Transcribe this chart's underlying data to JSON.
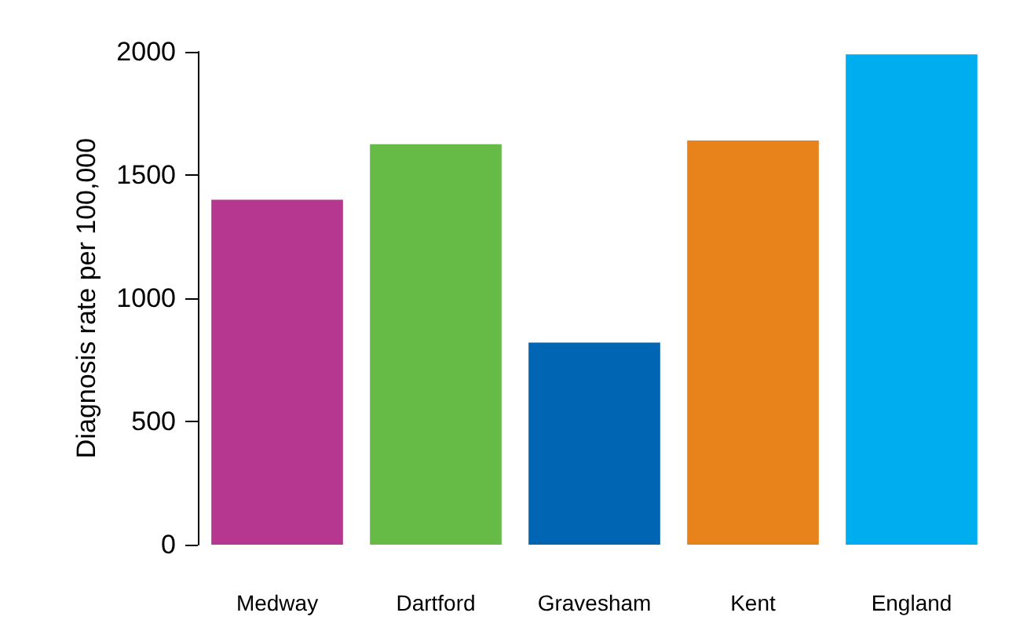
{
  "chart_data": {
    "type": "bar",
    "ylabel": "Diagnosis rate per 100,000",
    "categories": [
      "Medway",
      "Dartford",
      "Gravesham",
      "Kent",
      "England"
    ],
    "values": [
      1400,
      1625,
      820,
      1640,
      1990
    ],
    "colors": [
      "#b5378f",
      "#66bb47",
      "#0066b3",
      "#e8831c",
      "#00aeef"
    ],
    "ylim": [
      0,
      2000
    ],
    "yticks": [
      0,
      500,
      1000,
      1500,
      2000
    ],
    "grid": false
  }
}
